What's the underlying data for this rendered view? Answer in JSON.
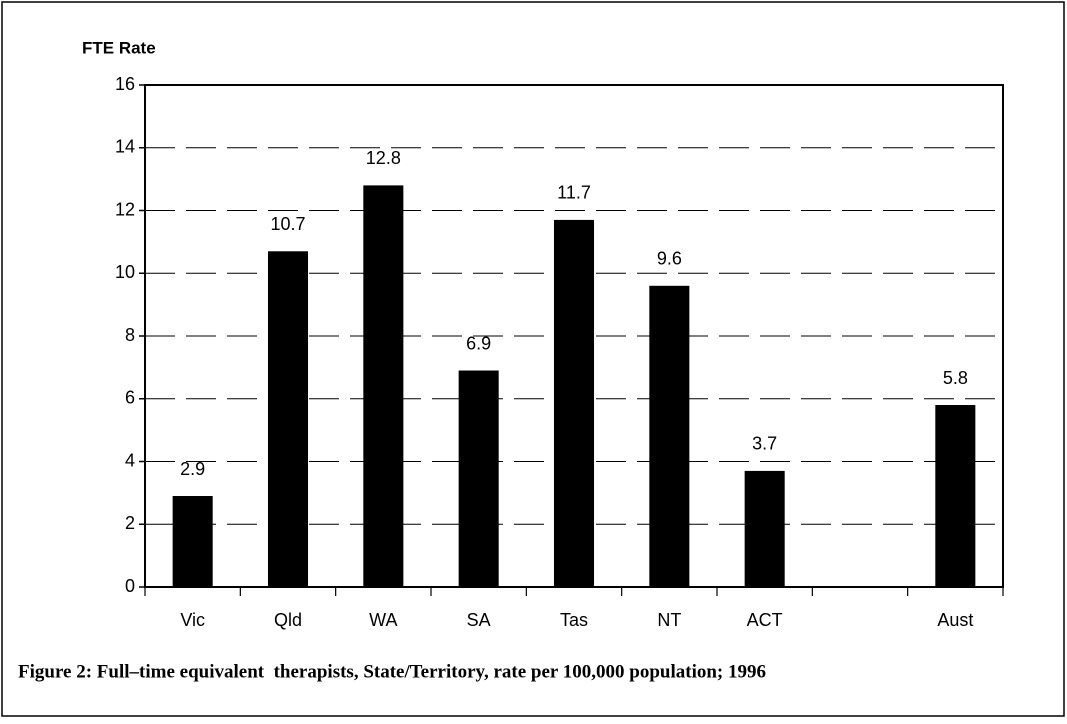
{
  "chart_data": {
    "type": "bar",
    "y_axis_label": "FTE Rate",
    "caption": "Figure 2: Full–time equivalent  therapists, State/Territory, rate per 100,000 population; 1996",
    "categories": [
      "Vic",
      "Qld",
      "WA",
      "SA",
      "Tas",
      "NT",
      "ACT",
      null,
      "Aust"
    ],
    "values": [
      2.9,
      10.7,
      12.8,
      6.9,
      11.7,
      9.6,
      3.7,
      null,
      5.8
    ],
    "color": "#000000",
    "ylim": [
      0,
      16
    ],
    "yticks": [
      0,
      2,
      4,
      6,
      8,
      10,
      12,
      14,
      16
    ],
    "grid": true
  }
}
